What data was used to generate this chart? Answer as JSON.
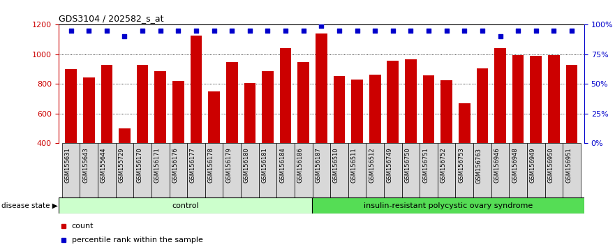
{
  "title": "GDS3104 / 202582_s_at",
  "samples": [
    "GSM155631",
    "GSM155643",
    "GSM155644",
    "GSM155729",
    "GSM156170",
    "GSM156171",
    "GSM156176",
    "GSM156177",
    "GSM156178",
    "GSM156179",
    "GSM156180",
    "GSM156181",
    "GSM156184",
    "GSM156186",
    "GSM156187",
    "GSM156510",
    "GSM156511",
    "GSM156512",
    "GSM156749",
    "GSM156750",
    "GSM156751",
    "GSM156752",
    "GSM156753",
    "GSM156763",
    "GSM156946",
    "GSM156948",
    "GSM156949",
    "GSM156950",
    "GSM156951"
  ],
  "counts": [
    900,
    843,
    928,
    502,
    928,
    888,
    820,
    1128,
    748,
    950,
    805,
    888,
    1040,
    950,
    1140,
    852,
    828,
    862,
    955,
    967,
    860,
    825,
    672,
    905,
    1040,
    993,
    990,
    993,
    928
  ],
  "percentile_ranks": [
    95,
    95,
    95,
    90,
    95,
    95,
    95,
    95,
    95,
    95,
    95,
    95,
    95,
    95,
    99,
    95,
    95,
    95,
    95,
    95,
    95,
    95,
    95,
    95,
    90,
    95,
    95,
    95,
    95
  ],
  "control_count": 14,
  "disease_label": "insulin-resistant polycystic ovary syndrome",
  "control_label": "control",
  "bar_color": "#cc0000",
  "percentile_color": "#0000cc",
  "ylim_left": [
    400,
    1200
  ],
  "ylim_right": [
    0,
    100
  ],
  "yticks_left": [
    400,
    600,
    800,
    1000,
    1200
  ],
  "yticks_right": [
    0,
    25,
    50,
    75,
    100
  ],
  "grid_values": [
    600,
    800,
    1000
  ],
  "background_color": "#ffffff",
  "control_bg": "#ccffcc",
  "disease_bg": "#55dd55",
  "xticklabel_bg": "#d8d8d8",
  "legend_count_label": "count",
  "legend_pct_label": "percentile rank within the sample"
}
